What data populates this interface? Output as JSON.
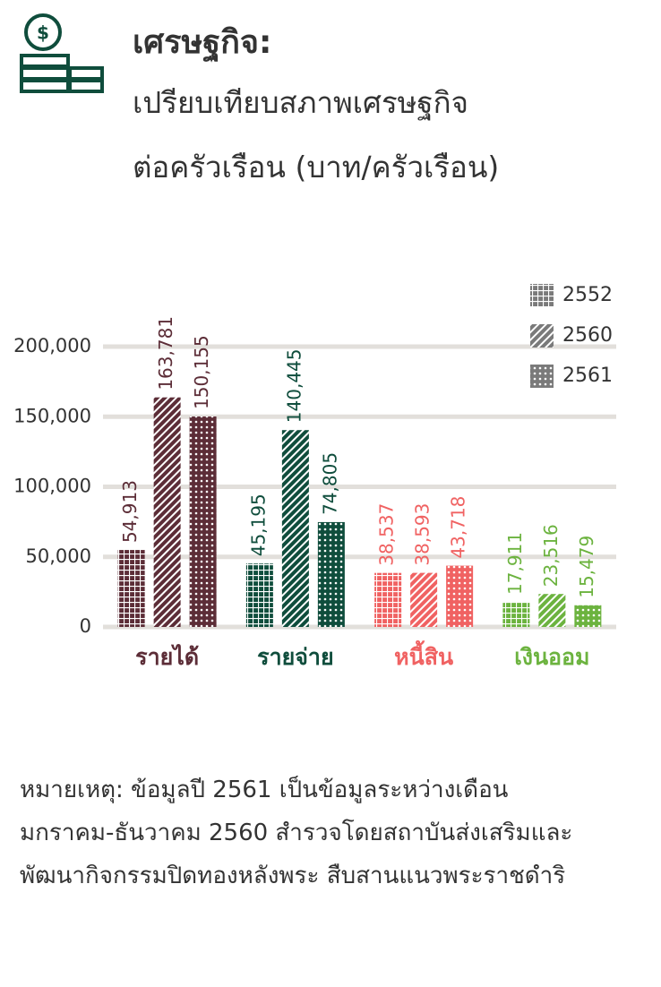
{
  "chart_data": {
    "type": "bar",
    "title": "เศรษฐกิจ:",
    "subtitle": [
      "เปรียบเทียบสภาพเศรษฐกิจ",
      "ต่อครัวเรือน (บาท/ครัวเรือน)"
    ],
    "categories": [
      "รายได้",
      "รายจ่าย",
      "หนี้สิน",
      "เงินออม"
    ],
    "category_colors": [
      "#5c2d37",
      "#0f4d3c",
      "#f06262",
      "#6cb33f"
    ],
    "series": [
      {
        "name": "2552",
        "color": "#7a7a7a",
        "pattern": "grid",
        "values": [
          54913,
          45195,
          38537,
          17911
        ],
        "value_labels": [
          "54,913",
          "45,195",
          "38,537",
          "17,911"
        ]
      },
      {
        "name": "2560",
        "color": "#7a7a7a",
        "pattern": "hatch",
        "values": [
          163781,
          140445,
          38593,
          23516
        ],
        "value_labels": [
          "163,781",
          "140,445",
          "38,593",
          "23,516"
        ]
      },
      {
        "name": "2561",
        "color": "#7a7a7a",
        "pattern": "dots",
        "values": [
          150155,
          74805,
          43718,
          15479
        ],
        "value_labels": [
          "150,155",
          "74,805",
          "43,718",
          "15,479"
        ]
      }
    ],
    "ylim": [
      0,
      200000
    ],
    "yticks": [
      0,
      {
        "value": 50000,
        "label": "50,000"
      },
      {
        "value": 100000,
        "label": "100,000"
      },
      {
        "value": 150000,
        "label": "150,000"
      },
      {
        "value": 200000,
        "label": "200,000"
      }
    ],
    "grid": true,
    "legend": "top-right",
    "note": "หมายเหตุ: ข้อมูลปี 2561 เป็นข้อมูลระหว่างเดือนมกราคม-ธันวาคม 2560 สำรวจโดยสถาบันส่งเสริมและพัฒนากิจกรรมปิดทองหลังพระ สืบสานแนวพระราชดำริ"
  }
}
